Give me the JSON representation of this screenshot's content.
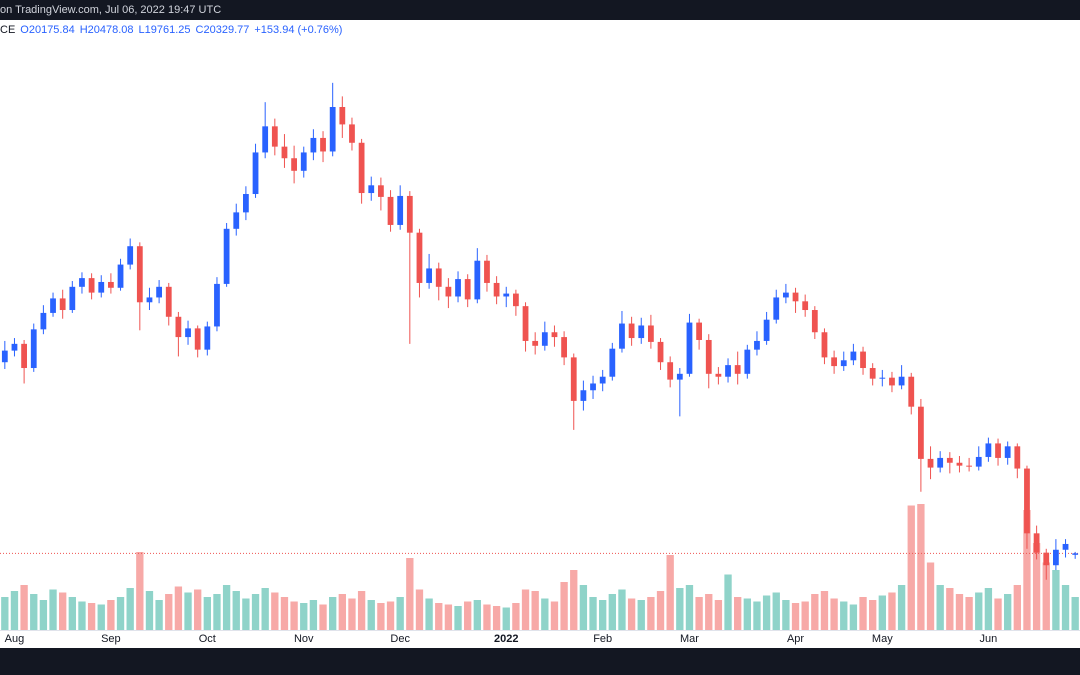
{
  "chart_data": {
    "type": "candlestick",
    "title": "on TradingView.com, Jul 06, 2022 19:47 UTC",
    "legend": [
      "CE",
      "O20175.84",
      "H20478.08",
      "L19761.25",
      "C20329.77",
      "+153.94 (+0.76%)"
    ],
    "categories": [
      null,
      "Aug",
      null,
      null,
      null,
      null,
      null,
      null,
      null,
      null,
      null,
      "Sep",
      null,
      null,
      null,
      null,
      null,
      null,
      null,
      null,
      null,
      "Oct",
      null,
      null,
      null,
      null,
      null,
      null,
      null,
      null,
      null,
      "Nov",
      null,
      null,
      null,
      null,
      null,
      null,
      null,
      null,
      null,
      "Dec",
      null,
      null,
      null,
      null,
      null,
      null,
      null,
      null,
      null,
      null,
      "2022",
      null,
      null,
      null,
      null,
      null,
      null,
      null,
      null,
      null,
      "Feb",
      null,
      null,
      null,
      null,
      null,
      null,
      null,
      null,
      "Mar",
      null,
      null,
      null,
      null,
      null,
      null,
      null,
      null,
      null,
      null,
      "Apr",
      null,
      null,
      null,
      null,
      null,
      null,
      null,
      null,
      "May",
      null,
      null,
      null,
      null,
      null,
      null,
      null,
      null,
      null,
      null,
      "Jun",
      null,
      null,
      null,
      null,
      null,
      null,
      null,
      null,
      null
    ],
    "open": [
      40100,
      41300,
      42000,
      39500,
      43500,
      45200,
      46700,
      45500,
      47900,
      48800,
      47300,
      48400,
      47800,
      50200,
      52100,
      46300,
      46800,
      47900,
      44800,
      42700,
      43600,
      41400,
      43800,
      48200,
      53900,
      55600,
      57500,
      61800,
      64500,
      62400,
      61200,
      59900,
      61800,
      63300,
      61900,
      66500,
      64700,
      62800,
      57600,
      58400,
      57200,
      54300,
      57300,
      53500,
      48300,
      49800,
      47900,
      46900,
      48700,
      46600,
      50600,
      48300,
      46900,
      47200,
      45900,
      42300,
      41800,
      43200,
      42700,
      40600,
      36100,
      37200,
      37900,
      38600,
      41500,
      44100,
      42600,
      43900,
      42200,
      40100,
      38300,
      38900,
      44200,
      42400,
      38900,
      38600,
      39800,
      38900,
      41400,
      42300,
      44500,
      46800,
      47300,
      46400,
      45500,
      43200,
      40600,
      39700,
      40300,
      41200,
      39500,
      38400,
      38500,
      37700,
      38600,
      35500,
      30100,
      29200,
      30200,
      29700,
      29400,
      29300,
      30300,
      31700,
      30200,
      31400,
      29100,
      22400,
      20400,
      19100,
      20700,
      20175.84
    ],
    "high": [
      42300,
      42600,
      42400,
      44100,
      46000,
      47300,
      47600,
      48500,
      49400,
      49300,
      49100,
      49300,
      50800,
      52900,
      52500,
      47800,
      48600,
      48300,
      45300,
      44400,
      43900,
      44300,
      48900,
      54500,
      56500,
      58300,
      62700,
      67000,
      65300,
      63700,
      62500,
      62400,
      64200,
      64000,
      69000,
      67600,
      65400,
      63200,
      59300,
      59200,
      57900,
      58400,
      57800,
      53900,
      51300,
      50400,
      48800,
      49500,
      49200,
      51900,
      51200,
      49000,
      47900,
      47600,
      46300,
      43200,
      44300,
      43900,
      43300,
      41000,
      38200,
      38700,
      39300,
      42100,
      45400,
      44800,
      44700,
      45000,
      42600,
      40700,
      39500,
      45100,
      44600,
      43000,
      39600,
      40500,
      41200,
      41900,
      43300,
      45300,
      47600,
      48200,
      47800,
      47100,
      45900,
      43600,
      41300,
      41200,
      42000,
      41700,
      40000,
      39300,
      39100,
      39800,
      39000,
      36300,
      31400,
      30900,
      30800,
      30400,
      30200,
      31400,
      32300,
      32200,
      31900,
      31700,
      29400,
      23200,
      20800,
      21800,
      21800,
      20478.08
    ],
    "low": [
      39400,
      40700,
      37900,
      39100,
      43000,
      44800,
      44600,
      45200,
      47200,
      46600,
      46800,
      47200,
      47500,
      49700,
      43400,
      45500,
      46200,
      43900,
      40700,
      41900,
      40600,
      40800,
      43300,
      47900,
      53200,
      54800,
      57100,
      61200,
      61500,
      60200,
      58600,
      59200,
      61000,
      60800,
      61400,
      63300,
      62000,
      56500,
      56800,
      55800,
      53600,
      53800,
      42000,
      46800,
      47700,
      46500,
      45700,
      46300,
      45800,
      46200,
      47400,
      46100,
      45800,
      44900,
      41200,
      40900,
      41300,
      41700,
      39800,
      33100,
      35100,
      36300,
      37100,
      38200,
      41100,
      41800,
      42000,
      41500,
      39300,
      37500,
      34500,
      38600,
      41400,
      37400,
      37800,
      38000,
      37800,
      38400,
      40800,
      41900,
      44100,
      46200,
      45200,
      44800,
      42500,
      39900,
      38900,
      39200,
      39800,
      38800,
      37700,
      37600,
      37000,
      37300,
      34700,
      26700,
      28000,
      28700,
      28600,
      28700,
      28800,
      28900,
      29800,
      29400,
      29500,
      28100,
      20800,
      19700,
      17600,
      18600,
      19900,
      19761.25
    ],
    "close": [
      41300,
      42000,
      39500,
      43500,
      45200,
      46700,
      45500,
      47900,
      48800,
      47300,
      48400,
      47800,
      50200,
      52100,
      46300,
      46800,
      47900,
      44800,
      42700,
      43600,
      41400,
      43800,
      48200,
      53900,
      55600,
      57500,
      61800,
      64500,
      62400,
      61200,
      59900,
      61800,
      63300,
      61900,
      66500,
      64700,
      62800,
      57600,
      58400,
      57200,
      54300,
      57300,
      53500,
      48300,
      49800,
      47900,
      46900,
      48700,
      46600,
      50600,
      48300,
      46900,
      47200,
      45900,
      42300,
      41800,
      43200,
      42700,
      40600,
      36100,
      37200,
      37900,
      38600,
      41500,
      44100,
      42600,
      43900,
      42200,
      40100,
      38300,
      38900,
      44200,
      42400,
      38900,
      38600,
      39800,
      38900,
      41400,
      42300,
      44500,
      46800,
      47300,
      46400,
      45500,
      43200,
      40600,
      39700,
      40300,
      41200,
      39500,
      38400,
      38500,
      37700,
      38600,
      35500,
      30100,
      29200,
      30200,
      29700,
      29400,
      29300,
      30300,
      31700,
      30200,
      31400,
      29100,
      22400,
      20400,
      19100,
      20700,
      21300,
      20329.77
    ],
    "volume": [
      22,
      26,
      30,
      24,
      20,
      27,
      25,
      22,
      19,
      18,
      17,
      20,
      22,
      28,
      52,
      26,
      20,
      24,
      29,
      25,
      27,
      22,
      24,
      30,
      26,
      21,
      24,
      28,
      25,
      22,
      19,
      18,
      20,
      17,
      22,
      24,
      21,
      26,
      20,
      18,
      19,
      22,
      48,
      27,
      21,
      18,
      17,
      16,
      19,
      20,
      17,
      16,
      15,
      18,
      27,
      26,
      21,
      19,
      32,
      40,
      30,
      22,
      20,
      24,
      27,
      21,
      20,
      22,
      26,
      50,
      28,
      30,
      22,
      24,
      20,
      37,
      22,
      21,
      19,
      23,
      25,
      20,
      18,
      19,
      24,
      26,
      21,
      19,
      17,
      22,
      20,
      23,
      25,
      30,
      83,
      84,
      45,
      30,
      28,
      24,
      22,
      25,
      28,
      21,
      24,
      30,
      80,
      58,
      45,
      40,
      30,
      22
    ],
    "ylim": [
      12400,
      75500
    ],
    "volume_ylim": [
      0,
      100
    ],
    "up_color": "#2962ff",
    "down_color": "#ef5350",
    "volume_up_color": "#8fd3c9",
    "volume_down_color": "#f7a9a7",
    "price_line": true
  }
}
